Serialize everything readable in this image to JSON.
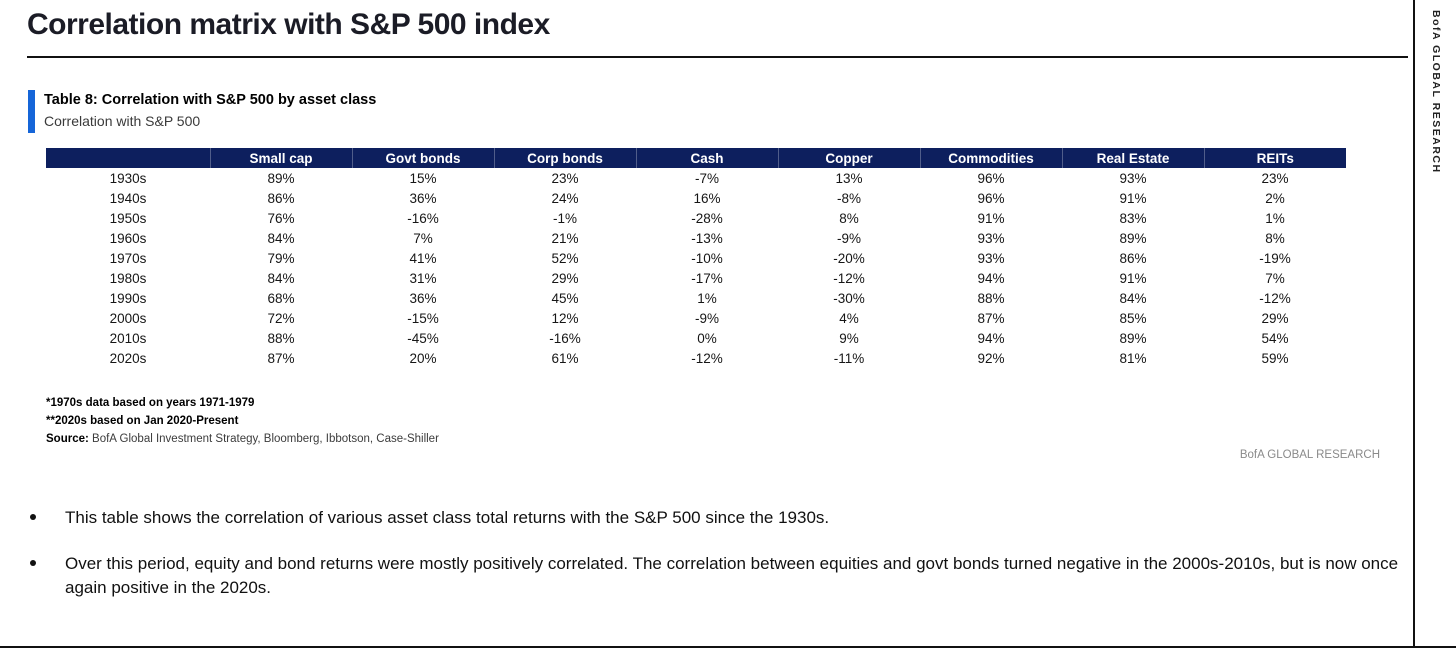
{
  "page": {
    "title": "Correlation matrix with S&P 500 index",
    "side_banner": "BofA GLOBAL RESEARCH",
    "watermark": "BofA GLOBAL RESEARCH"
  },
  "table": {
    "caption_bold": "Table 8: Correlation with S&P 500 by asset class",
    "caption_sub": "Correlation with S&P 500",
    "columns": [
      "Small cap",
      "Govt bonds",
      "Corp bonds",
      "Cash",
      "Copper",
      "Commodities",
      "Real Estate",
      "REITs"
    ],
    "rows": [
      {
        "decade": "1930s",
        "values": [
          "89%",
          "15%",
          "23%",
          "-7%",
          "13%",
          "96%",
          "93%",
          "23%"
        ]
      },
      {
        "decade": "1940s",
        "values": [
          "86%",
          "36%",
          "24%",
          "16%",
          "-8%",
          "96%",
          "91%",
          "2%"
        ]
      },
      {
        "decade": "1950s",
        "values": [
          "76%",
          "-16%",
          "-1%",
          "-28%",
          "8%",
          "91%",
          "83%",
          "1%"
        ]
      },
      {
        "decade": "1960s",
        "values": [
          "84%",
          "7%",
          "21%",
          "-13%",
          "-9%",
          "93%",
          "89%",
          "8%"
        ]
      },
      {
        "decade": "1970s",
        "values": [
          "79%",
          "41%",
          "52%",
          "-10%",
          "-20%",
          "93%",
          "86%",
          "-19%"
        ]
      },
      {
        "decade": "1980s",
        "values": [
          "84%",
          "31%",
          "29%",
          "-17%",
          "-12%",
          "94%",
          "91%",
          "7%"
        ]
      },
      {
        "decade": "1990s",
        "values": [
          "68%",
          "36%",
          "45%",
          "1%",
          "-30%",
          "88%",
          "84%",
          "-12%"
        ]
      },
      {
        "decade": "2000s",
        "values": [
          "72%",
          "-15%",
          "12%",
          "-9%",
          "4%",
          "87%",
          "85%",
          "29%"
        ]
      },
      {
        "decade": "2010s",
        "values": [
          "88%",
          "-45%",
          "-16%",
          "0%",
          "9%",
          "94%",
          "89%",
          "54%"
        ]
      },
      {
        "decade": "2020s",
        "values": [
          "87%",
          "20%",
          "61%",
          "-12%",
          "-11%",
          "92%",
          "81%",
          "59%"
        ]
      }
    ],
    "footnotes": [
      "*1970s data based on years 1971-1979",
      "**2020s based on Jan 2020-Present"
    ],
    "source_label": "Source:",
    "source_text": "BofA Global Investment Strategy, Bloomberg, Ibbotson, Case-Shiller"
  },
  "bullets": [
    "This table shows the correlation of various asset class total returns with the S&P 500 since the 1930s.",
    "Over this period, equity and bond returns were mostly positively correlated. The correlation between equities and govt bonds turned negative in the 2000s-2010s, but is now once again positive in the 2020s."
  ],
  "colors": {
    "header_bg": "#0d1f5e",
    "accent_bar": "#1565d8",
    "title_text": "#1b1c26",
    "watermark_gray": "#8a8a8a"
  }
}
